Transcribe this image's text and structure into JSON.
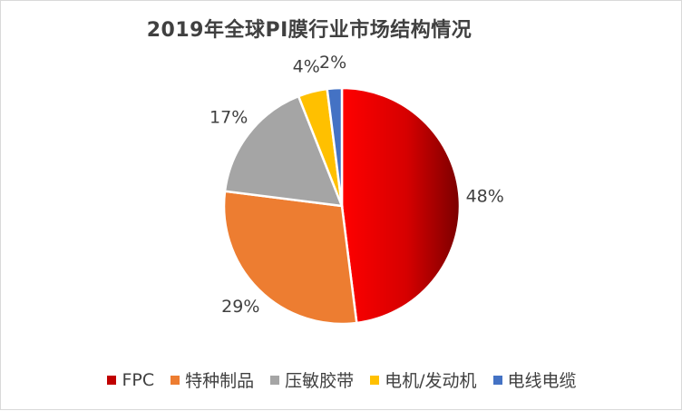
{
  "chart_data": {
    "type": "pie",
    "title": "2019年全球PI膜行业市场结构情况",
    "categories": [
      "FPC",
      "特种制品",
      "压敏胶带",
      "电机/发动机",
      "电线电缆"
    ],
    "values": [
      48,
      29,
      17,
      4,
      2
    ],
    "labels": [
      "48%",
      "29%",
      "17%",
      "4%",
      "2%"
    ],
    "colors": [
      "#c00000",
      "#ed7d31",
      "#a5a5a5",
      "#ffc000",
      "#4472c4"
    ],
    "legend_position": "bottom"
  }
}
